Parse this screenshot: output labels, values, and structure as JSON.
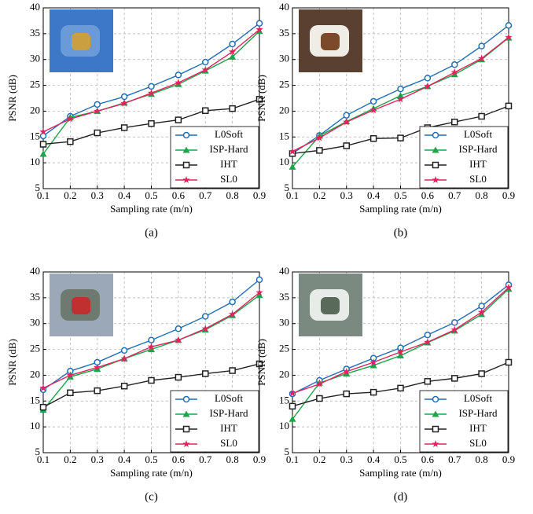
{
  "chart_data": [
    {
      "type": "line",
      "caption": "(a)",
      "xlabel": "Sampling rate (m/n)",
      "ylabel": "PSNR (dB)",
      "x": [
        0.1,
        0.2,
        0.3,
        0.4,
        0.5,
        0.6,
        0.7,
        0.8,
        0.9
      ],
      "xlim": [
        0.1,
        0.9
      ],
      "xticks": [
        0.1,
        0.2,
        0.3,
        0.4,
        0.5,
        0.6,
        0.7,
        0.8,
        0.9
      ],
      "ylim": [
        5,
        40
      ],
      "yticks": [
        5,
        10,
        15,
        20,
        25,
        30,
        35,
        40
      ],
      "grid": true,
      "legend": "lower right",
      "series": [
        {
          "name": "L0Soft",
          "color": "#1f6fb5",
          "marker": "circle",
          "values": [
            15.2,
            19,
            21.3,
            22.8,
            24.8,
            27,
            29.5,
            33,
            37
          ]
        },
        {
          "name": "ISP-Hard",
          "color": "#1aa548",
          "marker": "triangle",
          "values": [
            11.7,
            18.8,
            20,
            21.6,
            23.3,
            25.2,
            27.8,
            30.5,
            35.5
          ]
        },
        {
          "name": "IHT",
          "color": "#222222",
          "marker": "square",
          "values": [
            13.6,
            14.1,
            15.8,
            16.8,
            17.6,
            18.3,
            20.1,
            20.5,
            22.3
          ]
        },
        {
          "name": "SL0",
          "color": "#e0245e",
          "marker": "star",
          "values": [
            16,
            18.5,
            20,
            21.5,
            23.5,
            25.5,
            28,
            31.5,
            35.8
          ]
        }
      ]
    },
    {
      "type": "line",
      "caption": "(b)",
      "xlabel": "Sampling rate (m/n)",
      "ylabel": "PSNR (dB)",
      "x": [
        0.1,
        0.2,
        0.3,
        0.4,
        0.5,
        0.6,
        0.7,
        0.8,
        0.9
      ],
      "xlim": [
        0.1,
        0.9
      ],
      "xticks": [
        0.1,
        0.2,
        0.3,
        0.4,
        0.5,
        0.6,
        0.7,
        0.8,
        0.9
      ],
      "ylim": [
        5,
        40
      ],
      "yticks": [
        5,
        10,
        15,
        20,
        25,
        30,
        35,
        40
      ],
      "grid": true,
      "legend": "lower right",
      "series": [
        {
          "name": "L0Soft",
          "color": "#1f6fb5",
          "marker": "circle",
          "values": [
            11.8,
            15.3,
            19.2,
            21.9,
            24.3,
            26.4,
            29,
            32.6,
            36.6
          ]
        },
        {
          "name": "ISP-Hard",
          "color": "#1aa548",
          "marker": "triangle",
          "values": [
            9.2,
            15.2,
            18,
            20.5,
            23,
            24.8,
            27.1,
            30,
            34.2
          ]
        },
        {
          "name": "IHT",
          "color": "#222222",
          "marker": "square",
          "values": [
            11.8,
            12.4,
            13.3,
            14.7,
            14.8,
            16.8,
            17.9,
            19,
            21
          ]
        },
        {
          "name": "SL0",
          "color": "#e0245e",
          "marker": "star",
          "values": [
            12.2,
            14.8,
            17.9,
            20.2,
            22.3,
            24.8,
            27.5,
            30.2,
            34.3
          ]
        }
      ]
    },
    {
      "type": "line",
      "caption": "(c)",
      "xlabel": "Sampling rate (m/n)",
      "ylabel": "PSNR (dB)",
      "x": [
        0.1,
        0.2,
        0.3,
        0.4,
        0.5,
        0.6,
        0.7,
        0.8,
        0.9
      ],
      "xlim": [
        0.1,
        0.9
      ],
      "xticks": [
        0.1,
        0.2,
        0.3,
        0.4,
        0.5,
        0.6,
        0.7,
        0.8,
        0.9
      ],
      "ylim": [
        5,
        40
      ],
      "yticks": [
        5,
        10,
        15,
        20,
        25,
        30,
        35,
        40
      ],
      "grid": true,
      "legend": "lower right",
      "series": [
        {
          "name": "L0Soft",
          "color": "#1f6fb5",
          "marker": "circle",
          "values": [
            17.2,
            20.8,
            22.5,
            24.8,
            26.8,
            29,
            31.4,
            34.2,
            38.5
          ]
        },
        {
          "name": "ISP-Hard",
          "color": "#1aa548",
          "marker": "triangle",
          "values": [
            13.3,
            19.7,
            21.2,
            23.2,
            25,
            26.8,
            28.8,
            31.6,
            35.5
          ]
        },
        {
          "name": "IHT",
          "color": "#222222",
          "marker": "square",
          "values": [
            13.8,
            16.6,
            17,
            17.9,
            19,
            19.6,
            20.3,
            20.9,
            22.2
          ]
        },
        {
          "name": "SL0",
          "color": "#e0245e",
          "marker": "star",
          "values": [
            17.5,
            20,
            21.5,
            23.2,
            25.5,
            26.8,
            29,
            31.8,
            36
          ]
        }
      ]
    },
    {
      "type": "line",
      "caption": "(d)",
      "xlabel": "Sampling rate (m/n)",
      "ylabel": "PSNR (dB)",
      "x": [
        0.1,
        0.2,
        0.3,
        0.4,
        0.5,
        0.6,
        0.7,
        0.8,
        0.9
      ],
      "xlim": [
        0.1,
        0.9
      ],
      "xticks": [
        0.1,
        0.2,
        0.3,
        0.4,
        0.5,
        0.6,
        0.7,
        0.8,
        0.9
      ],
      "ylim": [
        5,
        40
      ],
      "yticks": [
        5,
        10,
        15,
        20,
        25,
        30,
        35,
        40
      ],
      "grid": true,
      "legend": "lower right",
      "series": [
        {
          "name": "L0Soft",
          "color": "#1f6fb5",
          "marker": "circle",
          "values": [
            16.4,
            19,
            21.2,
            23.3,
            25.3,
            27.8,
            30.2,
            33.4,
            37.5
          ]
        },
        {
          "name": "ISP-Hard",
          "color": "#1aa548",
          "marker": "triangle",
          "values": [
            11.5,
            18.5,
            20.3,
            21.9,
            23.8,
            26.3,
            28.6,
            31.8,
            36.7
          ]
        },
        {
          "name": "IHT",
          "color": "#222222",
          "marker": "square",
          "values": [
            14,
            15.5,
            16.4,
            16.7,
            17.5,
            18.8,
            19.4,
            20.3,
            22.5
          ]
        },
        {
          "name": "SL0",
          "color": "#e0245e",
          "marker": "star",
          "values": [
            16.5,
            18.3,
            20.7,
            22.5,
            24.5,
            26.4,
            28.8,
            32.2,
            37
          ]
        }
      ]
    }
  ]
}
